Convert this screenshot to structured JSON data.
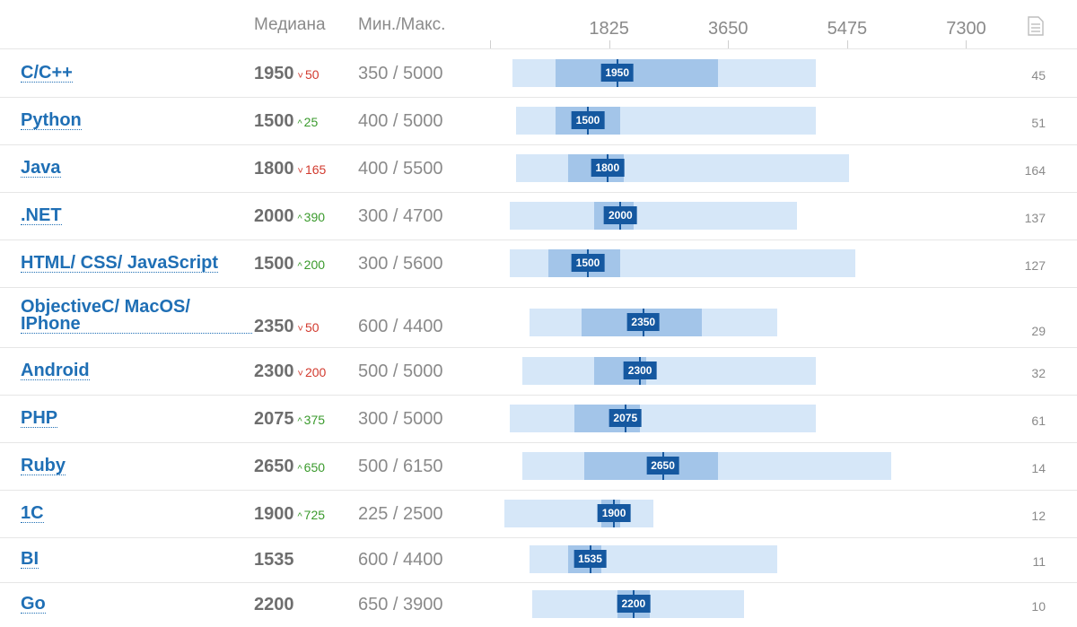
{
  "header": {
    "median_label": "Медиана",
    "minmax_label": "Мин./Макс.",
    "count_icon": "document-icon"
  },
  "colors": {
    "link": "#1f6fb5",
    "range_bar": "#d6e7f8",
    "iqr_bar": "#a3c5e9",
    "median_mark": "#1558a0",
    "delta_up": "#3a9a2c",
    "delta_down": "#d23a2e"
  },
  "chart_data": {
    "type": "table",
    "axis": {
      "ticks": [
        1825,
        3650,
        5475,
        7300
      ]
    },
    "rows": [
      {
        "lang": "C/C++",
        "median": 1950,
        "median_text": "1950",
        "delta": {
          "dir": "down",
          "value": "50"
        },
        "min": 350,
        "max": 5000,
        "minmax": "350 / 5000",
        "q1": 1000,
        "q3": 3500,
        "count": "45"
      },
      {
        "lang": "Python",
        "median": 1500,
        "median_text": "1500",
        "delta": {
          "dir": "up",
          "value": "25"
        },
        "min": 400,
        "max": 5000,
        "minmax": "400 / 5000",
        "q1": 1000,
        "q3": 2000,
        "count": "51"
      },
      {
        "lang": "Java",
        "median": 1800,
        "median_text": "1800",
        "delta": {
          "dir": "down",
          "value": "165"
        },
        "min": 400,
        "max": 5500,
        "minmax": "400 / 5500",
        "q1": 1200,
        "q3": 2050,
        "count": "164"
      },
      {
        "lang": ".NET",
        "median": 2000,
        "median_text": "2000",
        "delta": {
          "dir": "up",
          "value": "390"
        },
        "min": 300,
        "max": 4700,
        "minmax": "300 / 4700",
        "q1": 1600,
        "q3": 2200,
        "count": "137"
      },
      {
        "lang": "HTML/ CSS/ JavaScript",
        "median": 1500,
        "median_text": "1500",
        "delta": {
          "dir": "up",
          "value": "200"
        },
        "min": 300,
        "max": 5600,
        "minmax": "300 / 5600",
        "q1": 900,
        "q3": 2000,
        "count": "127"
      },
      {
        "lang": "ObjectiveC/ MacOS/ IPhone",
        "median": 2350,
        "median_text": "2350",
        "delta": {
          "dir": "down",
          "value": "50"
        },
        "min": 600,
        "max": 4400,
        "minmax": "600 / 4400",
        "q1": 1400,
        "q3": 3250,
        "count": "29"
      },
      {
        "lang": "Android",
        "median": 2300,
        "median_text": "2300",
        "delta": {
          "dir": "down",
          "value": "200"
        },
        "min": 500,
        "max": 5000,
        "minmax": "500 / 5000",
        "q1": 1600,
        "q3": 2400,
        "count": "32"
      },
      {
        "lang": "PHP",
        "median": 2075,
        "median_text": "2075",
        "delta": {
          "dir": "up",
          "value": "375"
        },
        "min": 300,
        "max": 5000,
        "minmax": "300 / 5000",
        "q1": 1300,
        "q3": 2300,
        "count": "61"
      },
      {
        "lang": "Ruby",
        "median": 2650,
        "median_text": "2650",
        "delta": {
          "dir": "up",
          "value": "650"
        },
        "min": 500,
        "max": 6150,
        "minmax": "500 / 6150",
        "q1": 1450,
        "q3": 3500,
        "count": "14"
      },
      {
        "lang": "1C",
        "median": 1900,
        "median_text": "1900",
        "delta": {
          "dir": "up",
          "value": "725"
        },
        "min": 225,
        "max": 2500,
        "minmax": "225 / 2500",
        "q1": 1700,
        "q3": 2000,
        "count": "12"
      },
      {
        "lang": "BI",
        "median": 1535,
        "median_text": "1535",
        "delta": null,
        "min": 600,
        "max": 4400,
        "minmax": "600 / 4400",
        "q1": 1200,
        "q3": 1700,
        "count": "11"
      },
      {
        "lang": "Go",
        "median": 2200,
        "median_text": "2200",
        "delta": null,
        "min": 650,
        "max": 3900,
        "minmax": "650 / 3900",
        "q1": 1950,
        "q3": 2450,
        "count": "10"
      }
    ]
  }
}
